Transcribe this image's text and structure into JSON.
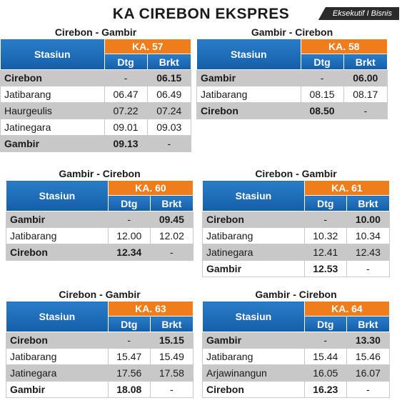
{
  "title": "KA CIREBON EKSPRES",
  "class_badge": "Eksekutif I Bisnis",
  "header": {
    "station": "Stasiun",
    "arrive": "Dtg",
    "depart": "Brkt"
  },
  "tables": [
    {
      "route": "Cirebon - Gambir",
      "train": "KA. 57",
      "rows": [
        {
          "station": "Cirebon",
          "dtg": "-",
          "brkt": "06.15"
        },
        {
          "station": "Jatibarang",
          "dtg": "06.47",
          "brkt": "06.49"
        },
        {
          "station": "Haurgeulis",
          "dtg": "07.22",
          "brkt": "07.24"
        },
        {
          "station": "Jatinegara",
          "dtg": "09.01",
          "brkt": "09.03"
        },
        {
          "station": "Gambir",
          "dtg": "09.13",
          "brkt": "-"
        }
      ]
    },
    {
      "route": "Gambir  - Cirebon",
      "train": "KA. 58",
      "rows": [
        {
          "station": "Gambir",
          "dtg": "-",
          "brkt": "06.00"
        },
        {
          "station": "Jatibarang",
          "dtg": "08.15",
          "brkt": "08.17"
        },
        {
          "station": "Cirebon",
          "dtg": "08.50",
          "brkt": "-"
        }
      ]
    },
    {
      "route": "Gambir  - Cirebon",
      "train": "KA. 60",
      "rows": [
        {
          "station": "Gambir",
          "dtg": "-",
          "brkt": "09.45"
        },
        {
          "station": "Jatibarang",
          "dtg": "12.00",
          "brkt": "12.02"
        },
        {
          "station": "Cirebon",
          "dtg": "12.34",
          "brkt": "-"
        }
      ]
    },
    {
      "route": "Cirebon - Gambir",
      "train": "KA. 61",
      "rows": [
        {
          "station": "Cirebon",
          "dtg": "-",
          "brkt": "10.00"
        },
        {
          "station": "Jatibarang",
          "dtg": "10.32",
          "brkt": "10.34"
        },
        {
          "station": "Jatinegara",
          "dtg": "12.41",
          "brkt": "12.43"
        },
        {
          "station": "Gambir",
          "dtg": "12.53",
          "brkt": "-"
        }
      ]
    },
    {
      "route": "Cirebon - Gambir",
      "train": "KA. 63",
      "rows": [
        {
          "station": "Cirebon",
          "dtg": "-",
          "brkt": "15.15"
        },
        {
          "station": "Jatibarang",
          "dtg": "15.47",
          "brkt": "15.49"
        },
        {
          "station": "Jatinegara",
          "dtg": "17.56",
          "brkt": "17.58"
        },
        {
          "station": "Gambir",
          "dtg": "18.08",
          "brkt": "-"
        }
      ]
    },
    {
      "route": "Gambir  - Cirebon",
      "train": "KA. 64",
      "rows": [
        {
          "station": "Gambir",
          "dtg": "-",
          "brkt": "13.30"
        },
        {
          "station": "Jatibarang",
          "dtg": "15.44",
          "brkt": "15.46"
        },
        {
          "station": "Arjawinangun",
          "dtg": "16.05",
          "brkt": "16.07"
        },
        {
          "station": "Cirebon",
          "dtg": "16.23",
          "brkt": "-"
        }
      ]
    }
  ]
}
